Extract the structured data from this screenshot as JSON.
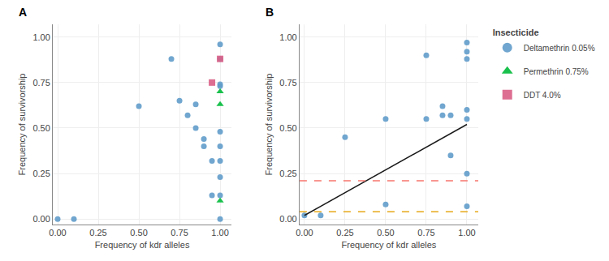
{
  "chart_data": [
    {
      "type": "scatter",
      "title": "A",
      "x_label": "Frequency of kdr alleles",
      "y_label": "Frequency of survivorship",
      "series": [
        {
          "name": "Deltamethrin 0.05%",
          "color": "#619cca",
          "marker": "circle",
          "x": [
            0.0,
            0.1,
            0.5,
            0.7,
            0.75,
            0.8,
            0.85,
            0.85,
            0.9,
            0.9,
            0.95,
            0.95,
            1.0,
            1.0,
            1.0,
            1.0,
            1.0,
            1.0,
            1.0,
            1.0,
            1.0,
            1.0
          ],
          "values": [
            0.0,
            0.0,
            0.62,
            0.88,
            0.65,
            0.57,
            0.5,
            0.63,
            0.44,
            0.4,
            0.32,
            0.13,
            0.96,
            0.88,
            0.74,
            0.73,
            0.48,
            0.4,
            0.32,
            0.23,
            0.13,
            0.0
          ]
        },
        {
          "name": "Permethrin 0.75%",
          "color": "#00ba38",
          "marker": "triangle",
          "x": [
            1.0,
            1.0,
            1.0
          ],
          "values": [
            0.7,
            0.63,
            0.1
          ]
        },
        {
          "name": "DDT 4.0%",
          "color": "#d95f86",
          "marker": "square",
          "x": [
            0.95,
            1.0
          ],
          "values": [
            0.75,
            0.88
          ]
        }
      ],
      "xlim": [
        -0.03,
        1.07
      ],
      "ylim": [
        -0.03,
        1.07
      ],
      "xticks": [
        {
          "value": 0.0,
          "label": "0.00"
        },
        0.25,
        {
          "value": 0.5,
          "label": "0.50"
        },
        0.75,
        {
          "value": 1.0,
          "label": "1.00"
        }
      ],
      "yticks": [
        {
          "value": 0.0,
          "label": "0.00"
        },
        0.25,
        {
          "value": 0.5,
          "label": "0.50"
        },
        0.75,
        {
          "value": 1.0,
          "label": "1.00"
        }
      ],
      "grid": true
    },
    {
      "type": "scatter",
      "title": "B",
      "x_label": "Frequency of kdr alleles",
      "y_label": "Frequency of survivorship",
      "series": [
        {
          "name": "Deltamethrin 0.05%",
          "color": "#619cca",
          "marker": "circle",
          "x": [
            0.0,
            0.1,
            0.25,
            0.5,
            0.5,
            0.75,
            0.75,
            0.85,
            0.85,
            0.9,
            0.9,
            1.0,
            1.0,
            1.0,
            1.0,
            1.0,
            1.0,
            1.0
          ],
          "values": [
            0.02,
            0.02,
            0.45,
            0.08,
            0.55,
            0.9,
            0.55,
            0.57,
            0.62,
            0.57,
            0.35,
            0.97,
            0.92,
            0.88,
            0.6,
            0.55,
            0.25,
            0.07
          ]
        },
        {
          "type": "line",
          "color": "#1a1a1a",
          "line_style": "solid",
          "x": [
            0.0,
            1.0
          ],
          "values": [
            0.02,
            0.52
          ]
        }
      ],
      "hlines": [
        {
          "y": 0.21,
          "color": "#f8766d",
          "line_style": "dashed"
        },
        {
          "y": 0.04,
          "color": "#e6a817",
          "line_style": "dashed"
        }
      ],
      "xlim": [
        -0.03,
        1.07
      ],
      "ylim": [
        -0.03,
        1.07
      ],
      "xticks": [
        {
          "value": 0.0,
          "label": "0.00"
        },
        0.25,
        {
          "value": 0.5,
          "label": "0.50"
        },
        0.75,
        {
          "value": 1.0,
          "label": "1.00"
        }
      ],
      "yticks": [
        {
          "value": 0.0,
          "label": "0.00"
        },
        0.25,
        {
          "value": 0.5,
          "label": "0.50"
        },
        0.75,
        {
          "value": 1.0,
          "label": "1.00"
        }
      ],
      "grid": true,
      "legend": "right",
      "legend_title": "Insecticide"
    }
  ]
}
